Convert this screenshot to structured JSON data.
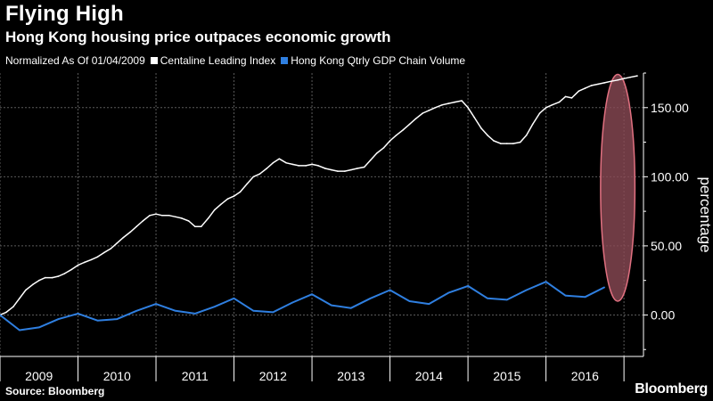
{
  "header": {
    "title": "Flying High",
    "subtitle": "Hong Kong housing price outpaces economic growth"
  },
  "legend": {
    "normalized_note": "Normalized As Of 01/04/2009",
    "items": [
      {
        "label": "Centaline Leading Index",
        "color": "#ffffff"
      },
      {
        "label": "Hong Kong Qtrly GDP Chain Volume",
        "color": "#2f7fe0"
      }
    ]
  },
  "footer": {
    "source": "Source: Bloomberg",
    "brand": "Bloomberg"
  },
  "colors": {
    "background": "#000000",
    "grid": "#5a5a5a",
    "white_series": "#ffffff",
    "blue_series": "#2f7fe0",
    "highlight_fill": "#8b4a55",
    "highlight_stroke": "#e07080"
  },
  "chart_data": {
    "type": "line",
    "title": "Flying High",
    "subtitle": "Hong Kong housing price outpaces economic growth",
    "ylabel": "percentage",
    "xlabel": "",
    "xlim": [
      2009.0,
      2017.25
    ],
    "ylim": [
      -30,
      175
    ],
    "yticks": [
      0,
      50,
      100,
      150
    ],
    "ytick_labels": [
      "0.00",
      "50.00",
      "100.00",
      "150.00"
    ],
    "year_labels": [
      "2009",
      "2010",
      "2011",
      "2012",
      "2013",
      "2014",
      "2015",
      "2016"
    ],
    "grid": true,
    "legend_position": "top-left",
    "series": [
      {
        "name": "Centaline Leading Index",
        "color": "#ffffff",
        "x": [
          2009.0,
          2009.08,
          2009.17,
          2009.25,
          2009.33,
          2009.42,
          2009.5,
          2009.58,
          2009.67,
          2009.75,
          2009.83,
          2009.92,
          2010.0,
          2010.08,
          2010.17,
          2010.25,
          2010.33,
          2010.42,
          2010.5,
          2010.58,
          2010.67,
          2010.75,
          2010.83,
          2010.92,
          2011.0,
          2011.08,
          2011.17,
          2011.25,
          2011.33,
          2011.42,
          2011.5,
          2011.58,
          2011.67,
          2011.75,
          2011.83,
          2011.92,
          2012.0,
          2012.08,
          2012.17,
          2012.25,
          2012.33,
          2012.42,
          2012.5,
          2012.58,
          2012.67,
          2012.75,
          2012.83,
          2012.92,
          2013.0,
          2013.08,
          2013.17,
          2013.25,
          2013.33,
          2013.42,
          2013.5,
          2013.58,
          2013.67,
          2013.75,
          2013.83,
          2013.92,
          2014.0,
          2014.08,
          2014.17,
          2014.25,
          2014.33,
          2014.42,
          2014.5,
          2014.58,
          2014.67,
          2014.75,
          2014.83,
          2014.92,
          2015.0,
          2015.08,
          2015.17,
          2015.25,
          2015.33,
          2015.42,
          2015.5,
          2015.58,
          2015.67,
          2015.75,
          2015.83,
          2015.92,
          2016.0,
          2016.08,
          2016.17,
          2016.25,
          2016.33,
          2016.42,
          2016.5,
          2016.58,
          2016.67,
          2016.75,
          2016.83,
          2016.92,
          2017.0,
          2017.08,
          2017.17
        ],
        "values": [
          0,
          2,
          6,
          12,
          18,
          22,
          25,
          27,
          27,
          28,
          30,
          33,
          36,
          38,
          40,
          42,
          45,
          48,
          52,
          56,
          60,
          64,
          68,
          72,
          73,
          72,
          72,
          71,
          70,
          68,
          64,
          64,
          70,
          76,
          80,
          84,
          86,
          89,
          95,
          100,
          102,
          106,
          110,
          113,
          110,
          109,
          108,
          108,
          109,
          108,
          106,
          105,
          104,
          104,
          105,
          106,
          107,
          112,
          117,
          121,
          126,
          130,
          134,
          138,
          142,
          146,
          148,
          150,
          152,
          153,
          154,
          155,
          150,
          143,
          135,
          130,
          126,
          124,
          124,
          124,
          125,
          130,
          138,
          146,
          150,
          152,
          154,
          158,
          157,
          162,
          164,
          166,
          167,
          168,
          169,
          170,
          171,
          172,
          173
        ]
      },
      {
        "name": "Hong Kong Qtrly GDP Chain Volume",
        "color": "#2f7fe0",
        "x": [
          2009.0,
          2009.25,
          2009.5,
          2009.75,
          2010.0,
          2010.25,
          2010.5,
          2010.75,
          2011.0,
          2011.25,
          2011.5,
          2011.75,
          2012.0,
          2012.25,
          2012.5,
          2012.75,
          2013.0,
          2013.25,
          2013.5,
          2013.75,
          2014.0,
          2014.25,
          2014.5,
          2014.75,
          2015.0,
          2015.25,
          2015.5,
          2015.75,
          2016.0,
          2016.25,
          2016.5,
          2016.75
        ],
        "values": [
          0,
          -11,
          -9,
          -3,
          1,
          -4,
          -3,
          3,
          8,
          3,
          1,
          6,
          12,
          3,
          2,
          9,
          15,
          7,
          5,
          12,
          18,
          10,
          8,
          16,
          21,
          12,
          11,
          18,
          24,
          14,
          13,
          20
        ]
      }
    ],
    "annotations": [
      {
        "type": "highlight-ellipse",
        "x_center": 2016.92,
        "y_center": 92,
        "x_radius": 0.22,
        "y_radius": 82
      }
    ]
  }
}
